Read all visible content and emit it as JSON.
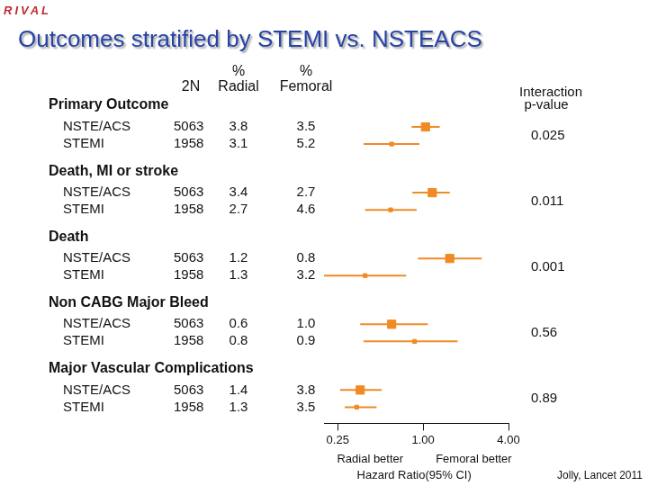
{
  "chart_data": {
    "type": "forest",
    "title": "Outcomes stratified by STEMI vs. NSTEACS",
    "subtitle": "RIVAL",
    "columns": {
      "n": "2N",
      "radial": [
        "%",
        "Radial"
      ],
      "femoral": [
        "%",
        "Femoral"
      ],
      "p": [
        "Interaction",
        "p-value"
      ]
    },
    "x_label": "Hazard Ratio(95% CI)",
    "annotations": [
      "Radial better",
      "Femoral better"
    ],
    "source": "Jolly, Lancet 2011",
    "log": "x",
    "grid": false,
    "color": "#f08a24",
    "marker": "square",
    "xlim": [
      0.2,
      4
    ],
    "xticks": [
      {
        "value": 0.25,
        "label": "0.25"
      },
      {
        "value": 1,
        "label": "1.00"
      },
      {
        "value": 4,
        "label": "4.00"
      }
    ],
    "outcomes": [
      {
        "name": "Primary Outcome",
        "p": 0.025,
        "rows": [
          {
            "group": "NSTE/ACS",
            "n": 5063,
            "radial": 3.8,
            "femoral": 3.5,
            "hr": 1.04,
            "ci_low": 0.83,
            "ci_high": 1.31
          },
          {
            "group": "STEMI",
            "n": 1958,
            "radial": 3.1,
            "femoral": 5.2,
            "hr": 0.6,
            "ci_low": 0.38,
            "ci_high": 0.94
          }
        ]
      },
      {
        "name": "Death, MI or stroke",
        "p": 0.011,
        "rows": [
          {
            "group": "NSTE/ACS",
            "n": 5063,
            "radial": 3.4,
            "femoral": 2.7,
            "hr": 1.16,
            "ci_low": 0.84,
            "ci_high": 1.54
          },
          {
            "group": "STEMI",
            "n": 1958,
            "radial": 2.7,
            "femoral": 4.6,
            "hr": 0.59,
            "ci_low": 0.39,
            "ci_high": 0.9
          }
        ]
      },
      {
        "name": "Death",
        "p": 0.001,
        "rows": [
          {
            "group": "NSTE/ACS",
            "n": 5063,
            "radial": 1.2,
            "femoral": 0.8,
            "hr": 1.54,
            "ci_low": 0.92,
            "ci_high": 2.59
          },
          {
            "group": "STEMI",
            "n": 1958,
            "radial": 1.3,
            "femoral": 3.2,
            "hr": 0.39,
            "ci_low": 0.2,
            "ci_high": 0.76
          }
        ]
      },
      {
        "name": "Non CABG Major Bleed",
        "p": 0.56,
        "rows": [
          {
            "group": "NSTE/ACS",
            "n": 5063,
            "radial": 0.6,
            "femoral": 1.0,
            "hr": 0.6,
            "ci_low": 0.36,
            "ci_high": 1.08
          },
          {
            "group": "STEMI",
            "n": 1958,
            "radial": 0.8,
            "femoral": 0.9,
            "hr": 0.87,
            "ci_low": 0.38,
            "ci_high": 1.75
          }
        ]
      },
      {
        "name": "Major Vascular Complications",
        "p": 0.89,
        "rows": [
          {
            "group": "NSTE/ACS",
            "n": 5063,
            "radial": 1.4,
            "femoral": 3.8,
            "hr": 0.36,
            "ci_low": 0.26,
            "ci_high": 0.51
          },
          {
            "group": "STEMI",
            "n": 1958,
            "radial": 1.3,
            "femoral": 3.5,
            "hr": 0.34,
            "ci_low": 0.28,
            "ci_high": 0.47
          }
        ]
      }
    ]
  }
}
